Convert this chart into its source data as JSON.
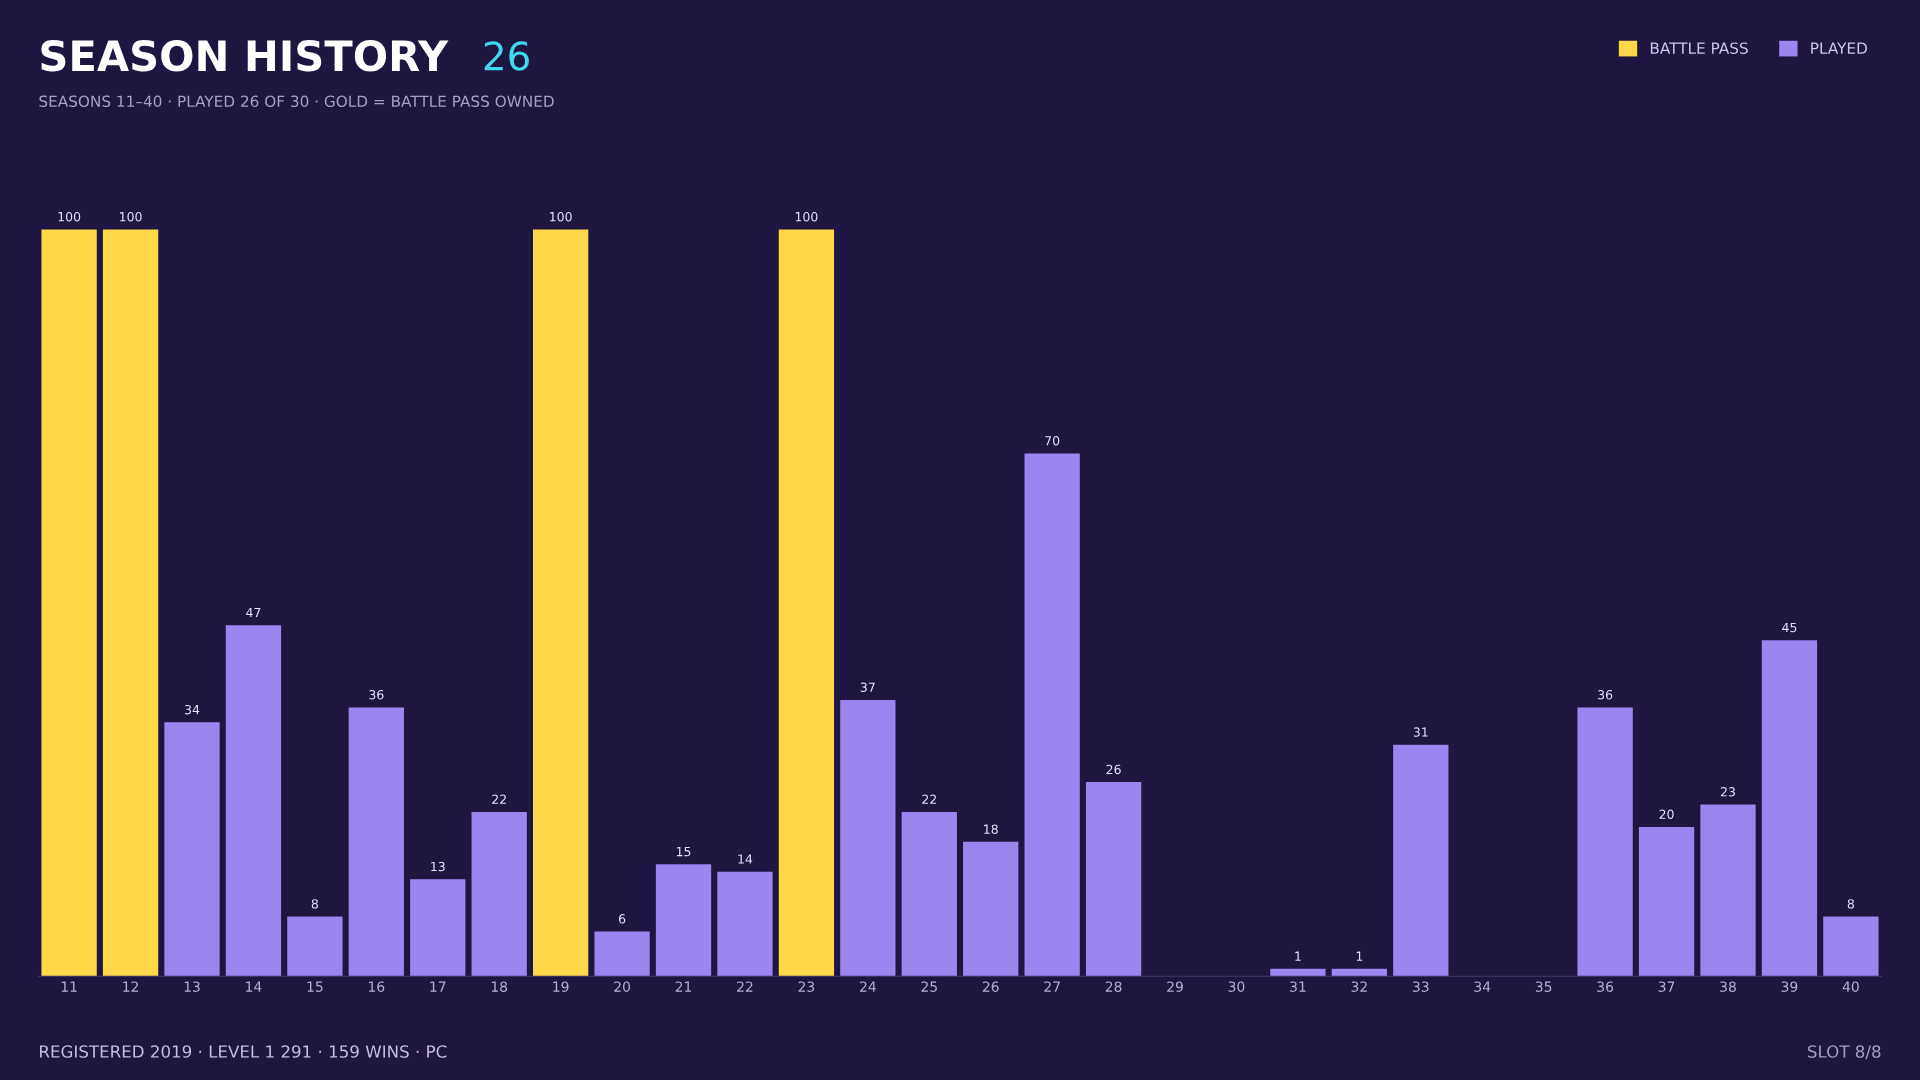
{
  "chart_data": {
    "type": "bar",
    "title": "SEASON HISTORY",
    "subtitle": "SEASONS 11–40 · PLAYED 26 OF 30 · GOLD = BATTLE PASS OWNED",
    "annotations": [
      "26",
      "REGISTERED 2019 · LEVEL 1 291 · 159 WINS · PC",
      "SLOT 8/8"
    ],
    "categories": [
      "11",
      "12",
      "13",
      "14",
      "15",
      "16",
      "17",
      "18",
      "19",
      "20",
      "21",
      "22",
      "23",
      "24",
      "25",
      "26",
      "27",
      "28",
      "29",
      "30",
      "31",
      "32",
      "33",
      "34",
      "35",
      "36",
      "37",
      "38",
      "39",
      "40"
    ],
    "series": [
      {
        "name": "BATTLE PASS",
        "color": "#ffd84a",
        "values": [
          100,
          100,
          null,
          null,
          null,
          null,
          null,
          null,
          100,
          null,
          null,
          null,
          100,
          null,
          null,
          null,
          null,
          null,
          null,
          null,
          null,
          null,
          null,
          null,
          null,
          null,
          null,
          null,
          null,
          null
        ],
        "value_labels": [
          "100",
          "100",
          null,
          null,
          null,
          null,
          null,
          null,
          "100",
          null,
          null,
          null,
          "100",
          null,
          null,
          null,
          null,
          null,
          null,
          null,
          null,
          null,
          null,
          null,
          null,
          null,
          null,
          null,
          null,
          null
        ]
      },
      {
        "name": "PLAYED",
        "color": "#9d85f0",
        "values": [
          null,
          null,
          34,
          47,
          8,
          36,
          13,
          22,
          null,
          6,
          15,
          14,
          null,
          37,
          22,
          18,
          70,
          26,
          0,
          0,
          1,
          1,
          31,
          0,
          0,
          36,
          20,
          23,
          45,
          8
        ],
        "value_labels": [
          null,
          null,
          "34",
          "47",
          "8",
          "36",
          "13",
          "22",
          null,
          "6",
          "15",
          "14",
          null,
          "37",
          "22",
          "18",
          "70",
          "26",
          null,
          null,
          "1",
          "1",
          "31",
          null,
          null,
          "36",
          "20",
          "23",
          "45",
          "8"
        ]
      }
    ],
    "tick_labels": "x",
    "grid": false,
    "legend": "top right"
  }
}
